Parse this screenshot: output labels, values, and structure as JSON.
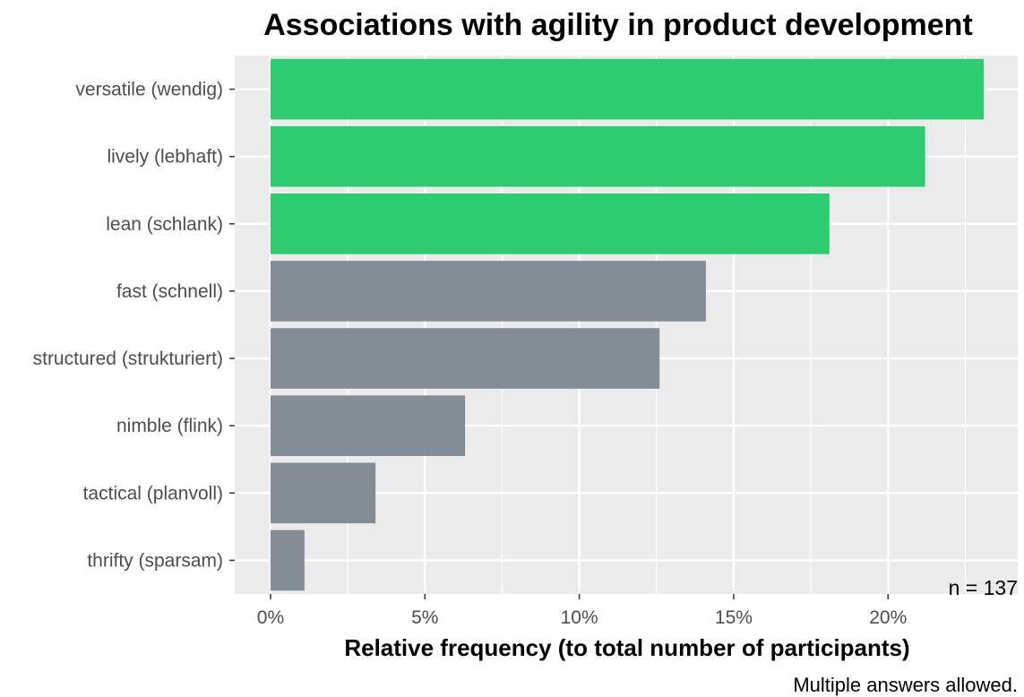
{
  "chart_data": {
    "type": "bar",
    "orientation": "horizontal",
    "title": "Associations with agility in product development",
    "xlabel": "Relative frequency (to total number of participants)",
    "caption": "Multiple answers allowed.",
    "annotation": "n = 137",
    "categories": [
      "versatile (wendig)",
      "lively (lebhaft)",
      "lean (schlank)",
      "fast (schnell)",
      "structured (strukturiert)",
      "nimble (flink)",
      "tactical (planvoll)",
      "thrifty (sparsam)"
    ],
    "values": [
      23.1,
      21.2,
      18.1,
      14.1,
      12.6,
      6.3,
      3.4,
      1.1
    ],
    "highlighted": [
      true,
      true,
      true,
      false,
      false,
      false,
      false,
      false
    ],
    "xticks": [
      0,
      5,
      10,
      15,
      20
    ],
    "xtick_labels": [
      "0%",
      "5%",
      "10%",
      "15%",
      "20%"
    ],
    "xlim": [
      -1.16,
      24.2
    ],
    "grid": true,
    "colors": {
      "highlight": "#2ecc71",
      "default": "#838d96",
      "panel": "#ebebeb",
      "gridline": "#ffffff"
    }
  }
}
